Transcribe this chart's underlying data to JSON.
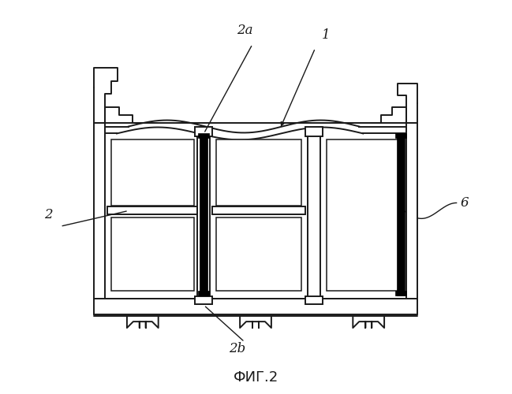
{
  "background_color": "#ffffff",
  "line_color": "#1a1a1a",
  "title": "ФИГ.2",
  "title_fontsize": 13,
  "label_fontsize": 12,
  "fig_width": 6.49,
  "fig_height": 5.0,
  "dpi": 100
}
